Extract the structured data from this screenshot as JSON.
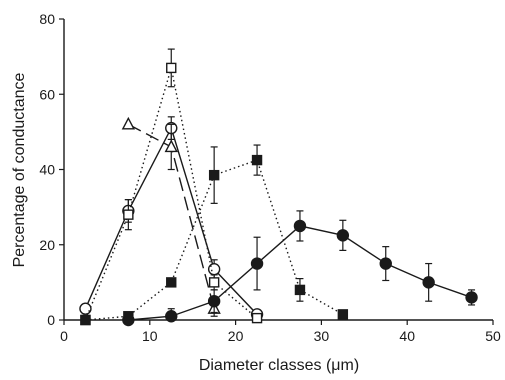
{
  "chart_data": {
    "type": "line",
    "xlabel": "Diameter classes (μm)",
    "ylabel": "Percentage of conductance",
    "xlim": [
      0,
      50
    ],
    "ylim": [
      0,
      80
    ],
    "xticks": [
      0,
      10,
      20,
      30,
      40,
      50
    ],
    "yticks": [
      0,
      20,
      40,
      60,
      80
    ],
    "grid": false,
    "series": [
      {
        "marker": "circle-open",
        "line": "solid",
        "color": "#1a1a1a",
        "x": [
          2.5,
          7.5,
          12.5,
          17.5,
          22.5
        ],
        "y": [
          3,
          29,
          51,
          13.5,
          1.5
        ],
        "err": [
          0,
          3,
          3,
          2.5,
          1
        ]
      },
      {
        "marker": "triangle-open",
        "line": "dashed",
        "color": "#1a1a1a",
        "x": [
          7.5,
          12.5,
          17.5
        ],
        "y": [
          52,
          46,
          3
        ],
        "err": [
          0,
          6,
          2
        ]
      },
      {
        "marker": "square-open",
        "line": "dotted",
        "color": "#1a1a1a",
        "x": [
          2.5,
          7.5,
          12.5,
          17.5,
          22.5
        ],
        "y": [
          0,
          28,
          67,
          10,
          0.5
        ],
        "err": [
          0,
          4,
          5,
          2,
          0.5
        ]
      },
      {
        "marker": "square-filled",
        "line": "dotted",
        "color": "#1a1a1a",
        "x": [
          2.5,
          7.5,
          12.5,
          17.5,
          22.5,
          27.5,
          32.5
        ],
        "y": [
          0,
          1,
          10,
          38.5,
          42.5,
          8,
          1.5
        ],
        "err": [
          0,
          0.5,
          1,
          7.5,
          4,
          3,
          0
        ]
      },
      {
        "marker": "circle-filled",
        "line": "solid",
        "color": "#1a1a1a",
        "x": [
          7.5,
          12.5,
          17.5,
          22.5,
          27.5,
          32.5,
          37.5,
          42.5,
          47.5
        ],
        "y": [
          0,
          1,
          5,
          15,
          25,
          22.5,
          15,
          10,
          6
        ],
        "err": [
          0,
          2,
          3,
          7,
          4,
          4,
          4.5,
          5,
          2
        ]
      }
    ]
  }
}
